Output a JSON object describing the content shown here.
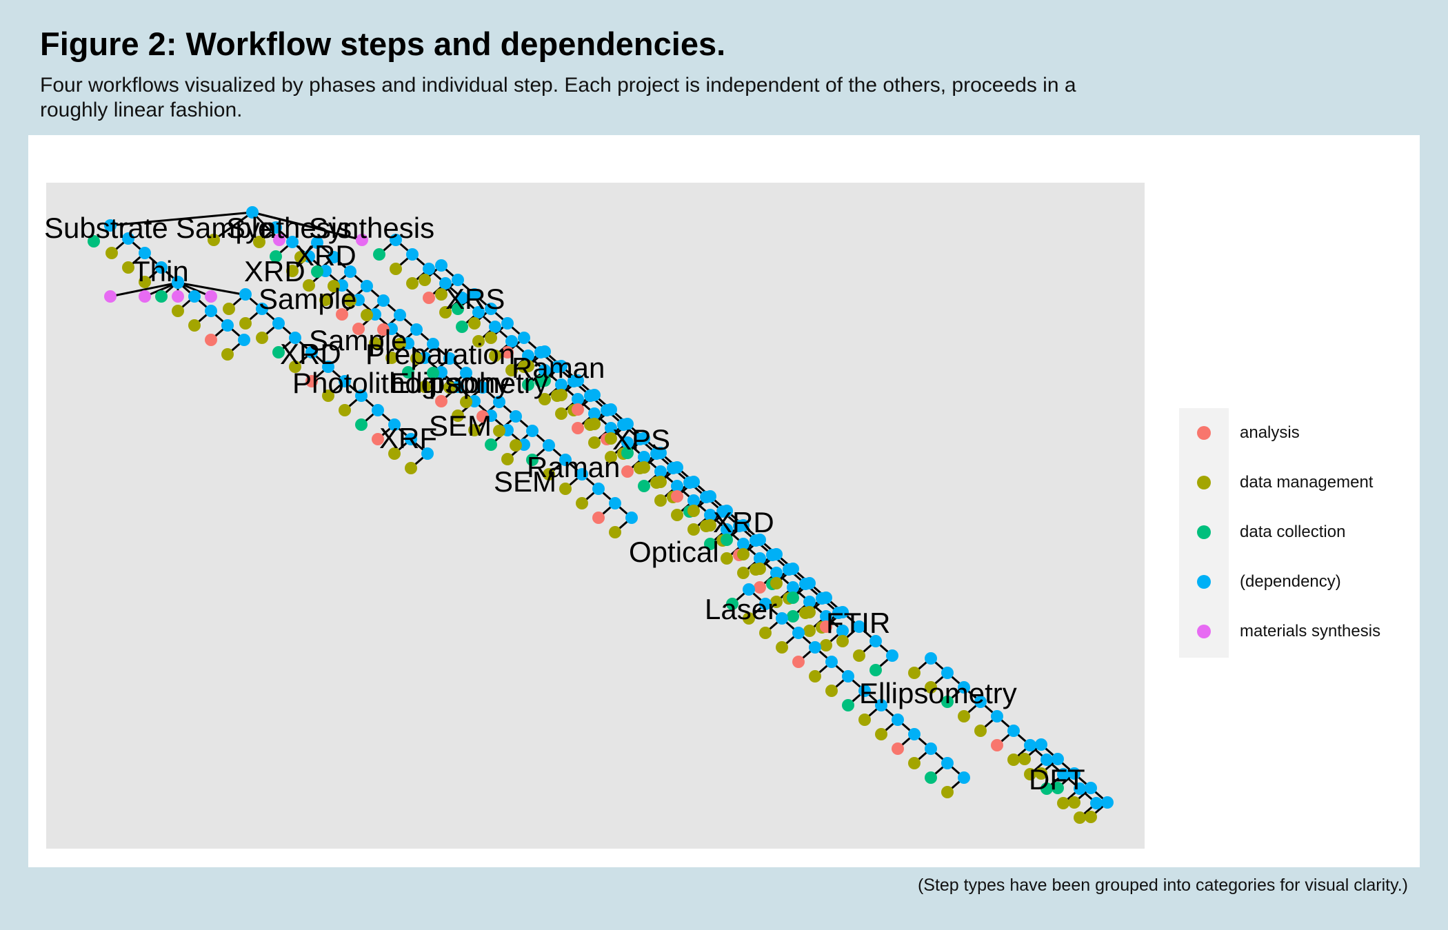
{
  "figure": {
    "title": "Figure 2: Workflow steps and dependencies.",
    "subtitle": "Four workflows visualized by phases and individual step. Each project is independent of the others, proceeds in a roughly linear fashion.",
    "caption": "(Step types have been grouped into categories for visual clarity.)"
  },
  "legend": {
    "items": [
      {
        "label": "analysis",
        "color": "#f8766d"
      },
      {
        "label": "data management",
        "color": "#a3a500"
      },
      {
        "label": "data collection",
        "color": "#00bf7d"
      },
      {
        "label": "(dependency)",
        "color": "#00b0f6"
      },
      {
        "label": "materials synthesis",
        "color": "#e76bf3"
      }
    ]
  },
  "node_labels": [
    "Substrate",
    "Sample",
    "Synthesis",
    "Synthesis",
    "XRD",
    "Thin",
    "XRD",
    "Sample",
    "XRS",
    "Sample",
    "XRD",
    "Preparation",
    "Raman",
    "Photolithography",
    "Ellipsometry",
    "SEM",
    "XRF",
    "XPS",
    "Raman",
    "SEM",
    "XRD",
    "Optical",
    "Laser",
    "FTIR",
    "Ellipsometry",
    "DFT"
  ]
}
